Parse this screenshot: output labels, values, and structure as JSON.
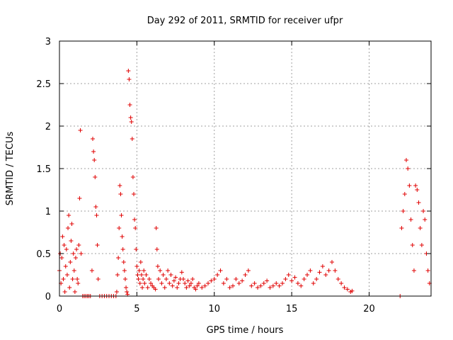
{
  "chart_data": {
    "type": "scatter",
    "title": "Day 292 of 2011, SRMTID for receiver ufpr",
    "xlabel": "GPS time / hours",
    "ylabel": "SRMTID / TECUs",
    "xlim": [
      0,
      24
    ],
    "ylim": [
      0,
      3
    ],
    "xticks": [
      0,
      5,
      10,
      15,
      20
    ],
    "yticks": [
      0,
      0.5,
      1,
      1.5,
      2,
      2.5,
      3
    ],
    "xtick_labels": [
      "0",
      "5",
      "10",
      "15",
      "20"
    ],
    "ytick_labels": [
      "0",
      "0.5",
      "1",
      "1.5",
      "2",
      "2.5",
      "3"
    ],
    "grid": true,
    "marker": "plus",
    "color": "#e00000",
    "series": [
      {
        "x": [
          0.0,
          0.05,
          0.1,
          0.15,
          0.2,
          0.25,
          0.3,
          0.35,
          0.4,
          0.45,
          0.5,
          0.55,
          0.6,
          0.65,
          0.7,
          0.75,
          0.8,
          0.85,
          0.9,
          0.95,
          1.0,
          1.05,
          1.1,
          1.15,
          1.2,
          1.25,
          1.3,
          1.35,
          1.4,
          1.5,
          1.6,
          1.7,
          1.8,
          1.9,
          2.0,
          2.1,
          2.15,
          2.2,
          2.25,
          2.3,
          2.35,
          2.4,
          2.45,
          2.5,
          2.6,
          2.75,
          2.9,
          3.05,
          3.2,
          3.35,
          3.5,
          3.65,
          3.7,
          3.75,
          3.8,
          3.85,
          3.9,
          3.95,
          4.0,
          4.05,
          4.1,
          4.15,
          4.2,
          4.25,
          4.3,
          4.35,
          4.4,
          4.45,
          4.5,
          4.55,
          4.6,
          4.65,
          4.7,
          4.75,
          4.8,
          4.85,
          4.9,
          4.95,
          5.0,
          5.05,
          5.1,
          5.15,
          5.2,
          5.25,
          5.3,
          5.35,
          5.4,
          5.45,
          5.5,
          5.6,
          5.7,
          5.8,
          5.9,
          6.0,
          6.1,
          6.2,
          6.25,
          6.3,
          6.35,
          6.4,
          6.5,
          6.6,
          6.7,
          6.8,
          6.9,
          7.0,
          7.1,
          7.2,
          7.3,
          7.4,
          7.5,
          7.6,
          7.7,
          7.8,
          7.9,
          8.0,
          8.1,
          8.2,
          8.3,
          8.4,
          8.5,
          8.6,
          8.7,
          8.8,
          8.9,
          9.0,
          9.2,
          9.4,
          9.6,
          9.8,
          10.0,
          10.2,
          10.4,
          10.6,
          10.8,
          11.0,
          11.2,
          11.4,
          11.6,
          11.8,
          12.0,
          12.2,
          12.4,
          12.6,
          12.8,
          13.0,
          13.2,
          13.4,
          13.6,
          13.8,
          14.0,
          14.2,
          14.4,
          14.6,
          14.8,
          15.0,
          15.2,
          15.4,
          15.6,
          15.8,
          16.0,
          16.2,
          16.4,
          16.6,
          16.8,
          17.0,
          17.2,
          17.4,
          17.6,
          17.8,
          18.0,
          18.2,
          18.4,
          18.6,
          18.8,
          18.9,
          22.0,
          22.1,
          22.2,
          22.3,
          22.4,
          22.5,
          22.6,
          22.7,
          22.8,
          22.9,
          23.0,
          23.1,
          23.2,
          23.3,
          23.4,
          23.5,
          23.6,
          23.7,
          23.8,
          23.9
        ],
        "y": [
          0.3,
          0.5,
          0.15,
          0.45,
          0.7,
          0.2,
          0.6,
          0.05,
          0.35,
          0.55,
          0.25,
          0.8,
          0.95,
          0.1,
          0.4,
          0.65,
          0.85,
          0.2,
          0.5,
          0.3,
          0.05,
          0.45,
          0.55,
          0.2,
          0.15,
          0.6,
          1.15,
          1.95,
          0.5,
          0.0,
          0.0,
          0.0,
          0.0,
          0.0,
          0.0,
          0.3,
          1.85,
          1.7,
          1.6,
          1.4,
          1.05,
          0.95,
          0.6,
          0.2,
          0.0,
          0.0,
          0.0,
          0.0,
          0.0,
          0.0,
          0.0,
          0.0,
          0.05,
          0.25,
          0.45,
          0.8,
          1.3,
          1.2,
          0.95,
          0.7,
          0.55,
          0.4,
          0.3,
          0.2,
          0.1,
          0.05,
          0.02,
          2.65,
          2.55,
          2.25,
          2.1,
          2.05,
          1.85,
          1.4,
          1.2,
          0.9,
          0.8,
          0.55,
          0.35,
          0.25,
          0.2,
          0.3,
          0.15,
          0.4,
          0.25,
          0.1,
          0.2,
          0.3,
          0.15,
          0.25,
          0.1,
          0.2,
          0.15,
          0.12,
          0.1,
          0.08,
          0.8,
          0.55,
          0.35,
          0.2,
          0.3,
          0.15,
          0.25,
          0.1,
          0.2,
          0.3,
          0.15,
          0.25,
          0.12,
          0.18,
          0.22,
          0.1,
          0.15,
          0.2,
          0.28,
          0.2,
          0.15,
          0.1,
          0.18,
          0.12,
          0.15,
          0.2,
          0.1,
          0.08,
          0.12,
          0.15,
          0.1,
          0.12,
          0.15,
          0.18,
          0.2,
          0.25,
          0.3,
          0.15,
          0.2,
          0.1,
          0.12,
          0.2,
          0.15,
          0.18,
          0.25,
          0.3,
          0.12,
          0.15,
          0.1,
          0.12,
          0.15,
          0.18,
          0.1,
          0.12,
          0.15,
          0.12,
          0.15,
          0.2,
          0.25,
          0.18,
          0.22,
          0.15,
          0.12,
          0.2,
          0.25,
          0.3,
          0.15,
          0.2,
          0.28,
          0.35,
          0.25,
          0.3,
          0.4,
          0.3,
          0.2,
          0.15,
          0.1,
          0.08,
          0.05,
          0.06,
          0.0,
          0.8,
          1.0,
          1.2,
          1.6,
          1.5,
          1.3,
          0.9,
          0.6,
          0.3,
          1.3,
          1.25,
          1.1,
          0.8,
          0.6,
          1.0,
          0.9,
          0.5,
          0.3,
          0.15
        ]
      }
    ]
  }
}
